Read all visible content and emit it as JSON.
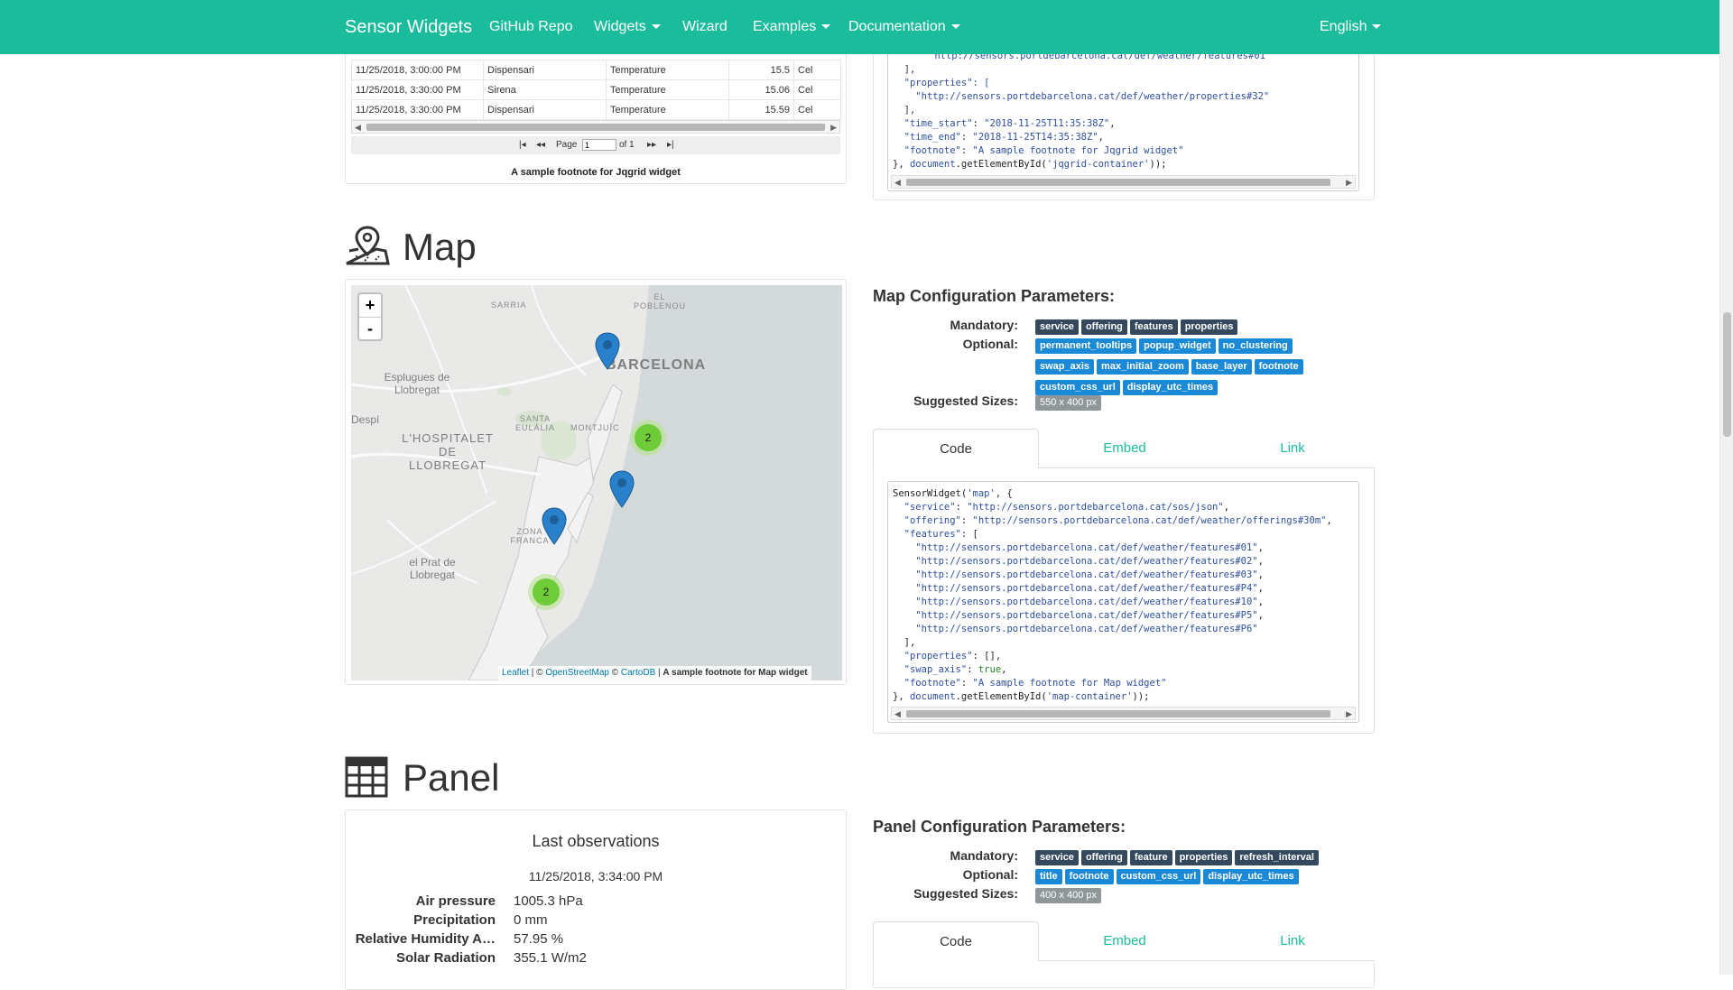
{
  "navbar": {
    "brand": "Sensor Widgets",
    "items": [
      "GitHub Repo",
      "Widgets",
      "Wizard",
      "Examples",
      "Documentation"
    ],
    "language": "English"
  },
  "jqgrid": {
    "rows": [
      [
        "11/25/2018, 3:00:00 PM",
        "Dispensari",
        "Temperature",
        "15.5",
        "Cel"
      ],
      [
        "11/25/2018, 3:30:00 PM",
        "Sirena",
        "Temperature",
        "15.06",
        "Cel"
      ],
      [
        "11/25/2018, 3:30:00 PM",
        "Dispensari",
        "Temperature",
        "15.59",
        "Cel"
      ]
    ],
    "pager": {
      "page_label": "Page",
      "page_value": "1",
      "of_label": "of 1"
    },
    "footnote": "A sample footnote for Jqgrid widget"
  },
  "jqgrid_code": {
    "line1": "\"http://sensors.portdebarcelona.cat/def/weather/features#01\"",
    "line2": "],",
    "line3": "\"properties\": [",
    "line4": "\"http://sensors.portdebarcelona.cat/def/weather/properties#32\"",
    "line5": "],",
    "time_start_key": "\"time_start\"",
    "time_start_val": "\"2018-11-25T11:35:38Z\"",
    "time_end_key": "\"time_end\"",
    "time_end_val": "\"2018-11-25T14:35:38Z\"",
    "footnote_key": "\"footnote\"",
    "footnote_val": "\"A sample footnote for Jqgrid widget\"",
    "close_prefix": "},",
    "document": "document",
    "get_by_id": ".getElementById(",
    "container": "'jqgrid-container'",
    "close_suffix": "));"
  },
  "map_section": {
    "title": "Map",
    "config_title": "Map Configuration Parameters",
    "mandatory_label": "Mandatory:",
    "mandatory": [
      "service",
      "offering",
      "features",
      "properties"
    ],
    "optional_label": "Optional:",
    "optional": [
      "permanent_tooltips",
      "popup_widget",
      "no_clustering",
      "swap_axis",
      "max_initial_zoom",
      "base_layer",
      "footnote",
      "custom_css_url",
      "display_utc_times"
    ],
    "sizes_label": "Suggested Sizes:",
    "sizes": [
      "550 x 400 px"
    ],
    "tabs": [
      "Code",
      "Embed",
      "Link"
    ],
    "active_tab": "Code",
    "zoom_in": "+",
    "zoom_out": "-",
    "places": [
      "SARRIA",
      "EL POBLENOU",
      "BARCELONA",
      "Esplugues de Llobregat",
      "Despí",
      "SANTA EULÀLIA",
      "MONTJUÏC",
      "L'HOSPITALET DE LLOBREGAT",
      "ZONA FRANCA",
      "el Prat de Llobregat"
    ],
    "clusters": [
      "2",
      "2"
    ],
    "attribution": {
      "leaflet": "Leaflet",
      "sep1": " | © ",
      "osm": "OpenStreetMap",
      "sep2": " © ",
      "carto": "CartoDB",
      "sep3": " | ",
      "footnote": "A sample footnote for Map widget"
    }
  },
  "map_code": {
    "l1_fn": "SensorWidget(",
    "l1_arg": "'map'",
    "l1_end": ", {",
    "service_key": "\"service\"",
    "service_val": "\"http://sensors.portdebarcelona.cat/sos/json\"",
    "offering_key": "\"offering\"",
    "offering_val": "\"http://sensors.portdebarcelona.cat/def/weather/offerings#30m\"",
    "features_key": "\"features\"",
    "features": [
      "\"http://sensors.portdebarcelona.cat/def/weather/features#01\"",
      "\"http://sensors.portdebarcelona.cat/def/weather/features#02\"",
      "\"http://sensors.portdebarcelona.cat/def/weather/features#03\"",
      "\"http://sensors.portdebarcelona.cat/def/weather/features#P4\"",
      "\"http://sensors.portdebarcelona.cat/def/weather/features#10\"",
      "\"http://sensors.portdebarcelona.cat/def/weather/features#P5\"",
      "\"http://sensors.portdebarcelona.cat/def/weather/features#P6\""
    ],
    "properties_key": "\"properties\"",
    "properties_val": "[],",
    "swap_key": "\"swap_axis\"",
    "swap_val": "true",
    "footnote_key": "\"footnote\"",
    "footnote_val": "\"A sample footnote for Map widget\"",
    "document": "document",
    "get_by_id": ".getElementById(",
    "container": "'map-container'",
    "close_suffix": "));"
  },
  "panel_section": {
    "title": "Panel",
    "config_title": "Panel Configuration Parameters",
    "mandatory_label": "Mandatory:",
    "mandatory": [
      "service",
      "offering",
      "feature",
      "properties",
      "refresh_interval"
    ],
    "optional_label": "Optional:",
    "optional": [
      "title",
      "footnote",
      "custom_css_url",
      "display_utc_times"
    ],
    "sizes_label": "Suggested Sizes:",
    "sizes": [
      "400 x 400 px"
    ],
    "tabs": [
      "Code",
      "Embed",
      "Link"
    ],
    "active_tab": "Code"
  },
  "panel_widget": {
    "title": "Last observations",
    "date": "11/25/2018, 3:34:00 PM",
    "rows": [
      {
        "label": "Air pressure",
        "value": "1005.3 hPa"
      },
      {
        "label": "Precipitation",
        "value": "0 mm"
      },
      {
        "label": "Relative Humidity A…",
        "value": "57.95 %"
      },
      {
        "label": "Solar Radiation",
        "value": "355.1 W/m2"
      }
    ]
  },
  "colors": {
    "navbar": "#1abc9c",
    "badge_mandatory": "#34495e",
    "badge_optional": "#1b8ad6",
    "badge_size": "#8f9798",
    "marker": "#2a81cb",
    "cluster": "#6ecc39"
  }
}
